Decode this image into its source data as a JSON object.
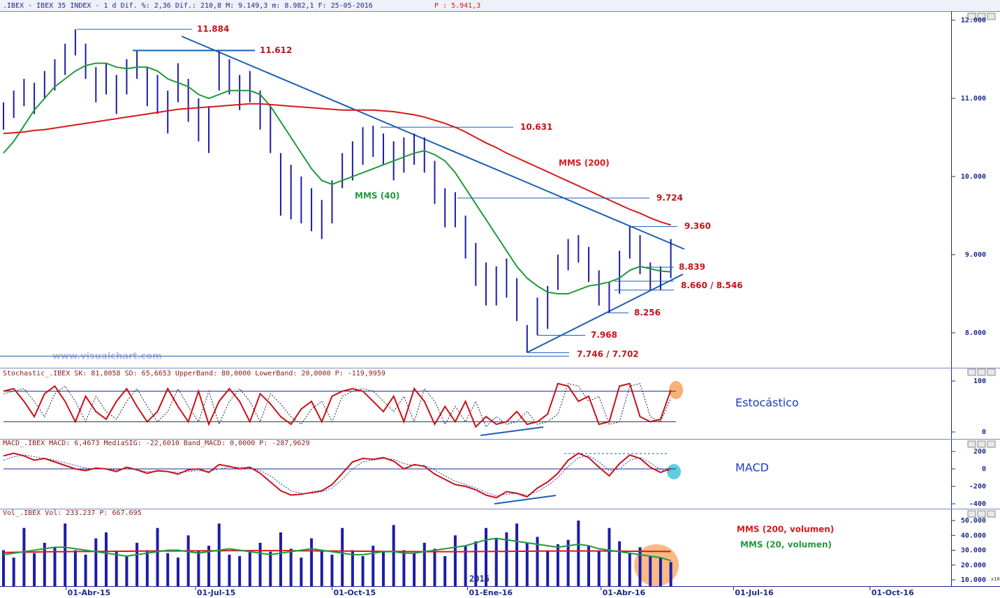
{
  "chart_data": [
    {
      "type": "range_bar",
      "header": ".IBEX - IBEX 35 INDEX -   1 d Dif. %: 2,36 Dif.: 210,8 M: 9.149,3 m: 8.982,1 F: 25-05-2016",
      "header_extra": "P : 5.941,3",
      "watermark": "www.visualchart.com",
      "color": "#1c1ca8",
      "high": [
        10950,
        11100,
        11250,
        11200,
        11350,
        11500,
        11700,
        11884,
        11700,
        11400,
        11450,
        11300,
        11500,
        11612,
        11400,
        11300,
        11100,
        11450,
        11250,
        11000,
        10900,
        11600,
        11500,
        11300,
        11350,
        11100,
        10900,
        10300,
        10150,
        10000,
        9850,
        9700,
        9950,
        10300,
        10450,
        10631,
        10650,
        10550,
        10450,
        10500,
        10550,
        10500,
        10200,
        9850,
        9800,
        9500,
        9150,
        8900,
        8850,
        8950,
        8700,
        8100,
        8450,
        8600,
        9000,
        9200,
        9250,
        9100,
        8800,
        8650,
        9050,
        9360,
        9250,
        8900,
        8850,
        9200
      ],
      "low": [
        10600,
        10750,
        10900,
        10800,
        11000,
        11100,
        11300,
        11550,
        11250,
        10950,
        11050,
        10800,
        11050,
        11250,
        10900,
        10800,
        10550,
        10950,
        10700,
        10450,
        10300,
        11100,
        11050,
        10850,
        10950,
        10600,
        10300,
        9500,
        9450,
        9400,
        9300,
        9200,
        9400,
        9850,
        9950,
        10150,
        10250,
        10150,
        9950,
        10050,
        10150,
        10050,
        9650,
        9350,
        9350,
        8950,
        8600,
        8350,
        8350,
        8450,
        8150,
        7746,
        7968,
        8050,
        8550,
        8800,
        8900,
        8650,
        8350,
        8256,
        8500,
        8950,
        8750,
        8546,
        8550,
        8700
      ],
      "series": [
        {
          "name": "MMS (40)",
          "color": "#1f9a3a",
          "values": [
            10300,
            10450,
            10650,
            10850,
            11000,
            11150,
            11250,
            11350,
            11420,
            11450,
            11450,
            11400,
            11380,
            11400,
            11400,
            11350,
            11250,
            11200,
            11150,
            11050,
            11000,
            11050,
            11100,
            11100,
            11100,
            11050,
            10900,
            10700,
            10500,
            10300,
            10100,
            9950,
            9900,
            9950,
            10000,
            10050,
            10100,
            10150,
            10200,
            10250,
            10300,
            10330,
            10280,
            10200,
            10050,
            9850,
            9650,
            9450,
            9250,
            9050,
            8850,
            8700,
            8600,
            8520,
            8500,
            8500,
            8550,
            8600,
            8620,
            8650,
            8700,
            8800,
            8850,
            8820,
            8790,
            8780
          ]
        },
        {
          "name": "MMS (200)",
          "color": "#d7191c",
          "values": [
            10550,
            10560,
            10570,
            10590,
            10600,
            10620,
            10640,
            10660,
            10680,
            10700,
            10720,
            10740,
            10760,
            10780,
            10800,
            10820,
            10840,
            10860,
            10870,
            10880,
            10890,
            10900,
            10910,
            10920,
            10930,
            10930,
            10920,
            10910,
            10900,
            10890,
            10880,
            10870,
            10860,
            10850,
            10850,
            10850,
            10850,
            10840,
            10830,
            10810,
            10790,
            10760,
            10720,
            10680,
            10630,
            10570,
            10500,
            10430,
            10370,
            10300,
            10240,
            10180,
            10120,
            10060,
            10000,
            9940,
            9880,
            9820,
            9760,
            9700,
            9640,
            9580,
            9530,
            9470,
            9420,
            9380
          ]
        }
      ],
      "levels": [
        {
          "values": [
            11884
          ],
          "label": "11.884"
        },
        {
          "values": [
            11612
          ],
          "label": "11.612"
        },
        {
          "values": [
            10631
          ],
          "label": "10.631"
        },
        {
          "values": [
            9724
          ],
          "label": "9.724"
        },
        {
          "values": [
            9360
          ],
          "label": "9.360"
        },
        {
          "values": [
            8839
          ],
          "label": "8.839"
        },
        {
          "values": [
            8660,
            8546
          ],
          "label": "8.660 / 8.546"
        },
        {
          "values": [
            8256
          ],
          "label": "8.256"
        },
        {
          "values": [
            7968
          ],
          "label": "7.968"
        },
        {
          "values": [
            7746,
            7702
          ],
          "label": "7.746 / 7.702"
        }
      ],
      "xlim": [
        -0.34,
        92.3
      ],
      "xticks": [
        {
          "value": 6.1,
          "label": "01-Abr-15"
        },
        {
          "value": 18.7,
          "label": "01-Jul-15"
        },
        {
          "value": 32,
          "label": "01-Oct-15"
        },
        {
          "value": 45.2,
          "label": "01-Ene-16"
        },
        {
          "value": 58.2,
          "label": "01-Abr-16"
        },
        {
          "value": 71.1,
          "label": "01-Jul-16"
        },
        {
          "value": 84.4,
          "label": "01-Oct-16"
        }
      ],
      "ylim": [
        7571,
        12098
      ],
      "yticks": [
        {
          "value": 8000,
          "label": "8.000"
        },
        {
          "value": 9000,
          "label": "9.000"
        },
        {
          "value": 10000,
          "label": "10.000"
        },
        {
          "value": 11000,
          "label": "11.000"
        },
        {
          "value": 12000,
          "label": "12.000"
        }
      ]
    },
    {
      "type": "oscillator",
      "header": "Stochastic_.IBEX SK: 81,8058 SD: 65,6653 UpperBand: 80,0000 LowerBand: 20,0000 P: -119,9959",
      "label": "Estocástico",
      "bands": [
        80,
        20
      ],
      "series": [
        {
          "name": "SK",
          "color": "#c8101a",
          "values": [
            80,
            85,
            60,
            30,
            75,
            90,
            60,
            20,
            70,
            40,
            25,
            60,
            85,
            50,
            20,
            40,
            85,
            50,
            20,
            80,
            15,
            60,
            85,
            60,
            20,
            75,
            55,
            30,
            15,
            45,
            60,
            20,
            70,
            80,
            85,
            80,
            60,
            40,
            70,
            20,
            85,
            60,
            15,
            50,
            20,
            60,
            10,
            30,
            15,
            20,
            40,
            15,
            20,
            35,
            95,
            90,
            60,
            70,
            15,
            20,
            90,
            95,
            30,
            20,
            25,
            82
          ]
        },
        {
          "name": "SD",
          "color": "#202040",
          "values": [
            75,
            80,
            85,
            60,
            30,
            75,
            90,
            60,
            20,
            70,
            40,
            25,
            60,
            85,
            50,
            20,
            40,
            85,
            50,
            20,
            80,
            15,
            60,
            85,
            60,
            20,
            75,
            55,
            30,
            15,
            45,
            60,
            20,
            70,
            80,
            85,
            80,
            60,
            40,
            70,
            20,
            85,
            60,
            15,
            50,
            20,
            60,
            10,
            30,
            15,
            20,
            40,
            15,
            20,
            35,
            95,
            90,
            60,
            70,
            15,
            20,
            90,
            95,
            30,
            20,
            66
          ]
        }
      ],
      "ylim": [
        -12.3,
        124.7
      ],
      "yticks": [
        0,
        100
      ]
    },
    {
      "type": "oscillator",
      "header": "MACD_.IBEX MACD: 6,4673 MediaSIG: -22,6010 Band_MACD: 0,0000 P: -287,9629",
      "label": "MACD",
      "bands": [
        0
      ],
      "series": [
        {
          "name": "MACD",
          "color": "#c8101a",
          "values": [
            150,
            180,
            150,
            100,
            120,
            80,
            40,
            0,
            -20,
            10,
            0,
            -30,
            20,
            -10,
            -50,
            -20,
            -30,
            -60,
            -10,
            0,
            -40,
            50,
            30,
            0,
            20,
            -50,
            -150,
            -250,
            -300,
            -290,
            -270,
            -250,
            -180,
            -50,
            80,
            120,
            110,
            130,
            90,
            0,
            50,
            30,
            -60,
            -120,
            -180,
            -200,
            -240,
            -300,
            -330,
            -260,
            -280,
            -320,
            -220,
            -150,
            -50,
            100,
            180,
            130,
            20,
            -80,
            60,
            160,
            120,
            20,
            -40,
            6
          ]
        },
        {
          "name": "MediaSIG",
          "color": "#1c3cc8",
          "values": [
            100,
            140,
            160,
            140,
            120,
            100,
            70,
            40,
            10,
            0,
            0,
            -10,
            0,
            -10,
            -30,
            -30,
            -30,
            -40,
            -30,
            -20,
            -30,
            0,
            20,
            20,
            10,
            -20,
            -80,
            -170,
            -250,
            -280,
            -280,
            -260,
            -220,
            -120,
            0,
            80,
            100,
            120,
            110,
            60,
            40,
            40,
            -10,
            -80,
            -140,
            -180,
            -220,
            -270,
            -310,
            -290,
            -280,
            -300,
            -260,
            -190,
            -100,
            30,
            130,
            150,
            80,
            -20,
            0,
            100,
            130,
            70,
            -10,
            -23
          ]
        }
      ],
      "ylim": [
        -448,
        328
      ],
      "yticks": [
        -400,
        -200,
        0,
        200
      ]
    },
    {
      "type": "volume",
      "header": "Vol_.IBEX Vol: 233.237 P: 667.695",
      "year_label": "2016",
      "multiplier_label": "x10",
      "color": "#1c1ca8",
      "values": [
        30000,
        25000,
        45000,
        28000,
        35000,
        32000,
        48000,
        30000,
        27000,
        38000,
        42000,
        29000,
        26000,
        35000,
        30000,
        45000,
        28000,
        25000,
        40000,
        30000,
        33000,
        48000,
        27000,
        26000,
        30000,
        35000,
        29000,
        42000,
        31000,
        25000,
        38000,
        30000,
        27000,
        45000,
        30000,
        26000,
        33000,
        29000,
        47000,
        30000,
        28000,
        35000,
        31000,
        26000,
        40000,
        33000,
        36000,
        45000,
        38000,
        42000,
        48000,
        35000,
        39000,
        30000,
        34000,
        37000,
        50000,
        33000,
        30000,
        45000,
        36000,
        28000,
        32000,
        26000,
        25000,
        22000
      ],
      "series": [
        {
          "name": "MMS (200, volumen)",
          "color": "#d7191c",
          "values": [
            28500,
            28600,
            28700,
            28800,
            28900,
            29000,
            29000,
            29100,
            29100,
            29200,
            29200,
            29300,
            29300,
            29400,
            29400,
            29500,
            29500,
            29500,
            29600,
            29600,
            29600,
            29600,
            29700,
            29700,
            29700,
            29700,
            29700,
            29700,
            29700,
            29600,
            29600,
            29500,
            29500,
            29400,
            29400,
            29300,
            29300,
            29200,
            29200,
            29100,
            29100,
            29000,
            29000,
            29000,
            29000,
            29000,
            29100,
            29100,
            29200,
            29200,
            29300,
            29300,
            29400,
            29400,
            29400,
            29500,
            29500,
            29500,
            29500,
            29400,
            29400,
            29300,
            29300,
            29200,
            29200,
            29100
          ]
        },
        {
          "name": "MMS (20, volumen)",
          "color": "#1f9a3a",
          "values": [
            27000,
            28000,
            29000,
            30000,
            31000,
            32000,
            32000,
            31000,
            30000,
            29000,
            28000,
            27000,
            26000,
            27000,
            28000,
            29000,
            30000,
            30000,
            29000,
            28000,
            29000,
            30000,
            31000,
            30000,
            29000,
            28000,
            27000,
            28000,
            29000,
            30000,
            31000,
            30000,
            29000,
            28000,
            27000,
            27000,
            28000,
            29000,
            29000,
            28000,
            28000,
            29000,
            30000,
            31000,
            32000,
            33000,
            35000,
            37000,
            38000,
            37000,
            36000,
            35000,
            34000,
            33000,
            32000,
            33000,
            34000,
            33000,
            31000,
            30000,
            29000,
            28000,
            27000,
            26000,
            25000,
            23000
          ]
        }
      ],
      "ylim": [
        5765,
        57059
      ],
      "yticks": [
        {
          "value": 10000,
          "label": "10.000"
        },
        {
          "value": 20000,
          "label": "20.000"
        },
        {
          "value": 30000,
          "label": "30.000"
        },
        {
          "value": 40000,
          "label": "40.000"
        },
        {
          "value": 50000,
          "label": "50.000"
        }
      ]
    }
  ]
}
